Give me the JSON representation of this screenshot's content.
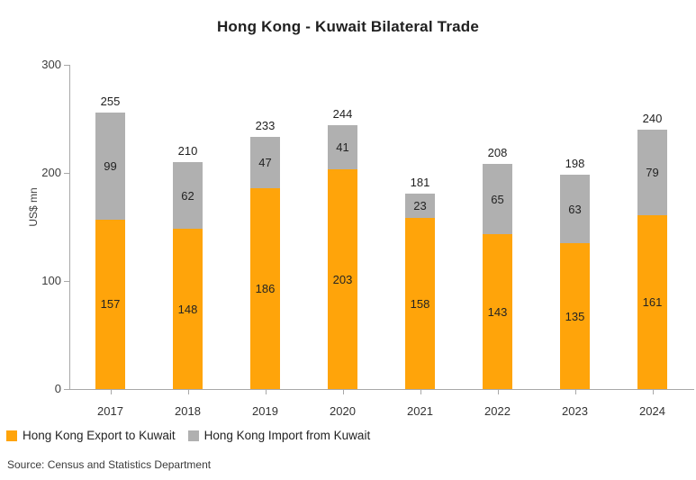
{
  "chart_data": {
    "type": "bar",
    "stacked": true,
    "title": "Hong Kong - Kuwait Bilateral Trade",
    "xlabel": "",
    "ylabel": "US$ mn",
    "ylim": [
      0,
      300
    ],
    "yticks": [
      0,
      100,
      200,
      300
    ],
    "grid": false,
    "legend_position": "bottom-left",
    "categories": [
      "2017",
      "2018",
      "2019",
      "2020",
      "2021",
      "2022",
      "2023",
      "2024"
    ],
    "series": [
      {
        "name": "Hong Kong Export to Kuwait",
        "color": "#FFA40A",
        "values": [
          157,
          148,
          186,
          203,
          158,
          143,
          135,
          161
        ]
      },
      {
        "name": "Hong Kong Import from Kuwait",
        "color": "#B0B0B0",
        "values": [
          99,
          62,
          47,
          41,
          23,
          65,
          63,
          79
        ]
      }
    ],
    "totals": [
      255,
      210,
      233,
      244,
      181,
      208,
      198,
      240
    ]
  },
  "colors": {
    "export": "#FFA40A",
    "import": "#B0B0B0",
    "axis": "#A8A8A8",
    "title_text": "#1F1F1F",
    "label_text": "#232323"
  },
  "source": "Source: Census and Statistics Department"
}
